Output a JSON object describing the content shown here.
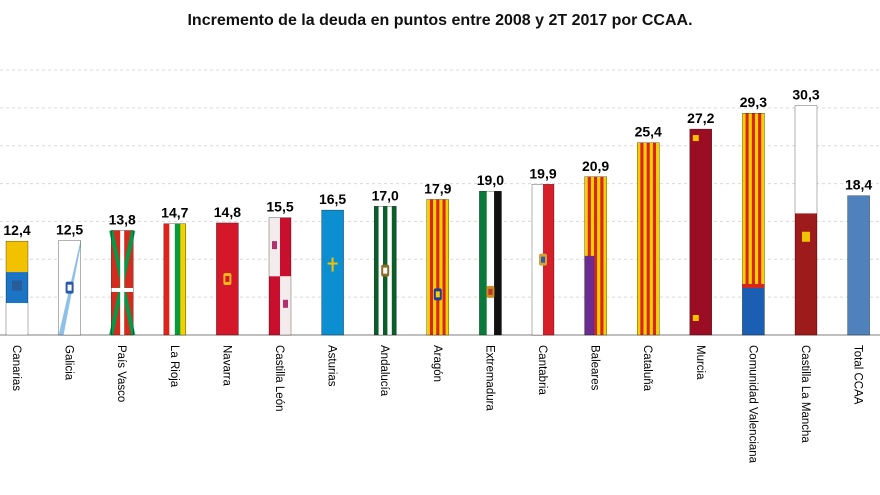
{
  "chart_data": {
    "type": "bar",
    "title": "Incremento de la deuda en puntos entre 2008 y 2T 2017 por CCAA.",
    "categories": [
      "Canarias",
      "Galicia",
      "País Vasco",
      "La Rioja",
      "Navarra",
      "Castilla León",
      "Asturias",
      "Andalucía",
      "Aragón",
      "Extremadura",
      "Cantabria",
      "Baleares",
      "Cataluña",
      "Murcia",
      "Comunidad Valenciana",
      "Castilla La Mancha",
      "Total CCAA"
    ],
    "values": [
      12.4,
      12.5,
      13.8,
      14.7,
      14.8,
      15.5,
      16.5,
      17.0,
      17.9,
      19.0,
      19.9,
      20.9,
      25.4,
      27.2,
      29.3,
      30.3,
      18.4
    ],
    "data_labels": [
      "12,4",
      "12,5",
      "13,8",
      "14,7",
      "14,8",
      "15,5",
      "16,5",
      "17,0",
      "17,9",
      "19,0",
      "19,9",
      "20,9",
      "25,4",
      "27,2",
      "29,3",
      "30,3",
      "18,4"
    ],
    "bar_style": [
      "canarias",
      "galicia",
      "paisvasco",
      "larioja",
      "navarra",
      "castillaleon",
      "asturias",
      "andalucia",
      "aragon",
      "extremadura",
      "cantabria",
      "baleares",
      "cataluna",
      "murcia",
      "valenciana",
      "castillalamancha",
      "total"
    ],
    "ylim": [
      0,
      35
    ],
    "grid": true,
    "legend": "none"
  },
  "colors": {
    "total": "#4f81bd",
    "grid": "#d9d9d9",
    "axis": "#7f7f7f",
    "label": "#000000"
  }
}
